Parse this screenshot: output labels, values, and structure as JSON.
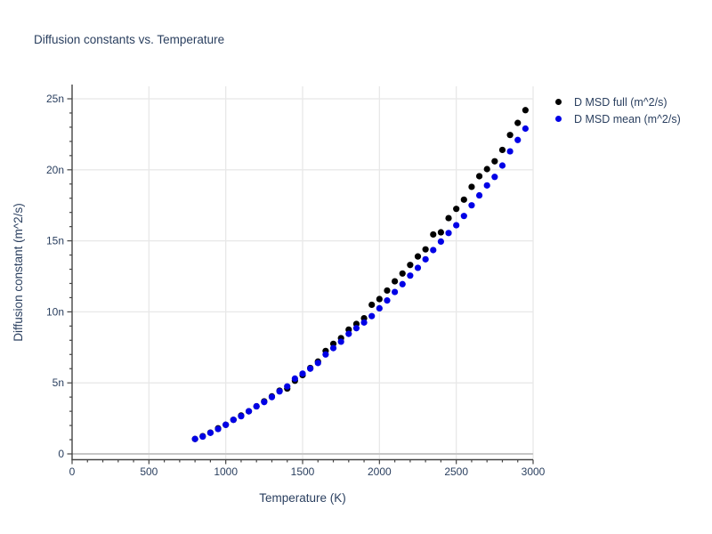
{
  "chart_data": {
    "type": "scatter",
    "title": "Diffusion constants vs. Temperature",
    "xlabel": "Temperature (K)",
    "ylabel": "Diffusion constant (m^2/s)",
    "xlim": [
      0,
      3000
    ],
    "ylim_display_nano": [
      0,
      25
    ],
    "y_unit": "values in 1e-9 m^2/s; axis labels use SI prefix n",
    "grid": true,
    "legend_position": "top-right-outside",
    "x_ticks": {
      "values": [
        0,
        500,
        1000,
        1500,
        2000,
        2500,
        3000
      ],
      "labels": [
        "0",
        "500",
        "1000",
        "1500",
        "2000",
        "2500",
        "3000"
      ],
      "minor_step": 100
    },
    "y_ticks": {
      "values": [
        0,
        5,
        10,
        15,
        20,
        25
      ],
      "labels": [
        "0",
        "5n",
        "10n",
        "15n",
        "20n",
        "25n"
      ],
      "minor_step": 1
    },
    "x": [
      800,
      850,
      900,
      950,
      1000,
      1050,
      1100,
      1150,
      1200,
      1250,
      1300,
      1350,
      1400,
      1450,
      1500,
      1550,
      1600,
      1650,
      1700,
      1750,
      1800,
      1850,
      1900,
      1950,
      2000,
      2050,
      2100,
      2150,
      2200,
      2250,
      2300,
      2350,
      2400,
      2450,
      2500,
      2550,
      2600,
      2650,
      2700,
      2750,
      2800,
      2850,
      2900,
      2950
    ],
    "series": [
      {
        "name": "D MSD full (m^2/s)",
        "color": "#000000",
        "marker": "circle",
        "values_nano": [
          1.05,
          1.25,
          1.5,
          1.8,
          2.05,
          2.4,
          2.7,
          3.0,
          3.35,
          3.7,
          4.05,
          4.45,
          4.6,
          5.15,
          5.55,
          6.05,
          6.5,
          7.25,
          7.75,
          8.15,
          8.75,
          9.15,
          9.55,
          10.5,
          10.9,
          11.5,
          12.15,
          12.7,
          13.3,
          13.9,
          14.4,
          15.45,
          15.6,
          16.6,
          17.25,
          17.9,
          18.8,
          19.55,
          20.05,
          20.6,
          21.4,
          22.45,
          23.3,
          24.2
        ]
      },
      {
        "name": "D MSD mean (m^2/s)",
        "color": "#0000e6",
        "marker": "circle",
        "values_nano": [
          1.05,
          1.22,
          1.48,
          1.75,
          2.05,
          2.4,
          2.65,
          3.0,
          3.35,
          3.65,
          4.0,
          4.4,
          4.75,
          5.3,
          5.65,
          6.0,
          6.4,
          7.0,
          7.45,
          7.9,
          8.45,
          8.85,
          9.25,
          9.7,
          10.25,
          10.8,
          11.4,
          11.95,
          12.55,
          13.1,
          13.7,
          14.35,
          14.95,
          15.55,
          16.1,
          16.75,
          17.5,
          18.2,
          18.9,
          19.5,
          20.3,
          21.3,
          22.1,
          22.9
        ]
      }
    ],
    "colors": {
      "text": "#2a3f5f",
      "grid": "#e8e8e8",
      "zeroline": "#c6c6c6",
      "axis": "#444444",
      "background": "#ffffff"
    }
  }
}
